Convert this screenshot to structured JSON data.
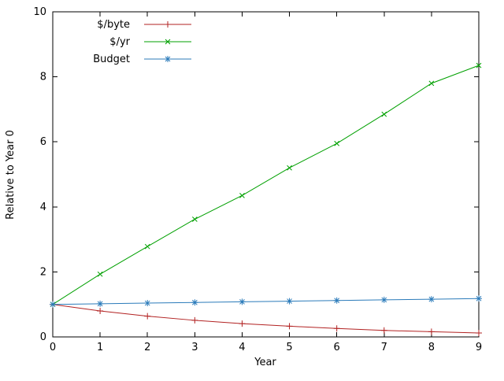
{
  "chart_data": {
    "type": "line",
    "title": "",
    "xlabel": "Year",
    "ylabel": "Relative to Year 0",
    "xlim": [
      0,
      9
    ],
    "ylim": [
      0,
      10
    ],
    "xticks": [
      0,
      1,
      2,
      3,
      4,
      5,
      6,
      7,
      8,
      9
    ],
    "yticks": [
      0,
      2,
      4,
      6,
      8,
      10
    ],
    "grid": false,
    "legend_position": "top-left-inside",
    "x": [
      0,
      1,
      2,
      3,
      4,
      5,
      6,
      7,
      8,
      9
    ],
    "series": [
      {
        "name": "$/byte",
        "color": "#b22222",
        "marker": "plus",
        "values": [
          1.0,
          0.8,
          0.64,
          0.51,
          0.41,
          0.33,
          0.26,
          0.2,
          0.16,
          0.12
        ]
      },
      {
        "name": "$/yr",
        "color": "#00a000",
        "marker": "cross",
        "values": [
          1.0,
          1.93,
          2.78,
          3.62,
          4.35,
          5.2,
          5.95,
          6.85,
          7.8,
          8.35
        ]
      },
      {
        "name": "Budget",
        "color": "#2b7bba",
        "marker": "asterisk",
        "values": [
          1.0,
          1.02,
          1.04,
          1.06,
          1.08,
          1.1,
          1.12,
          1.14,
          1.16,
          1.18
        ]
      }
    ]
  }
}
